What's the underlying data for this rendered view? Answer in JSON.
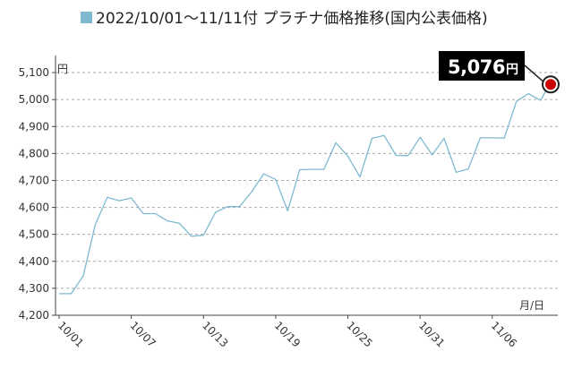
{
  "chart_data": {
    "type": "line",
    "title": "2022/10/01〜11/11付 プラチナ価格推移(国内公表価格)",
    "ylabel": "円",
    "xlabel": "月/日",
    "ylim": [
      4200,
      5150
    ],
    "yticks": [
      4200,
      4300,
      4400,
      4500,
      4600,
      4700,
      4800,
      4900,
      5000,
      5100
    ],
    "ytick_labels": [
      "4,200",
      "4,300",
      "4,400",
      "4,500",
      "4,600",
      "4,700",
      "4,800",
      "4,900",
      "5,000",
      "5,100"
    ],
    "x_tick_labels": [
      "10/01",
      "10/07",
      "10/13",
      "10/19",
      "10/25",
      "10/31",
      "11/06"
    ],
    "x_tick_index": [
      0,
      6,
      12,
      18,
      24,
      30,
      36
    ],
    "grid": true,
    "legend_position": "top",
    "series": [
      {
        "name": "2022/10/01〜11/11付 プラチナ価格推移(国内公表価格)",
        "color": "#7fb9cf",
        "values": [
          4280,
          4280,
          4345,
          4535,
          4637,
          4625,
          4635,
          4577,
          4577,
          4550,
          4541,
          4493,
          4497,
          4582,
          4603,
          4603,
          4658,
          4724,
          4704,
          4587,
          4740,
          4741,
          4741,
          4840,
          4790,
          4713,
          4856,
          4867,
          4793,
          4792,
          4860,
          4795,
          4856,
          4730,
          4742,
          4858,
          4858,
          4857,
          4993,
          5022,
          4997,
          5076
        ]
      }
    ],
    "callout": {
      "value_text": "5,076",
      "unit_text": "円"
    }
  },
  "colors": {
    "line": "#7fb9cf",
    "legend_swatch": "#7fb9cf",
    "grid": "#aaaaaa",
    "axis": "#444444",
    "marker_fill": "#cc0000",
    "callout_bg": "#000000"
  }
}
